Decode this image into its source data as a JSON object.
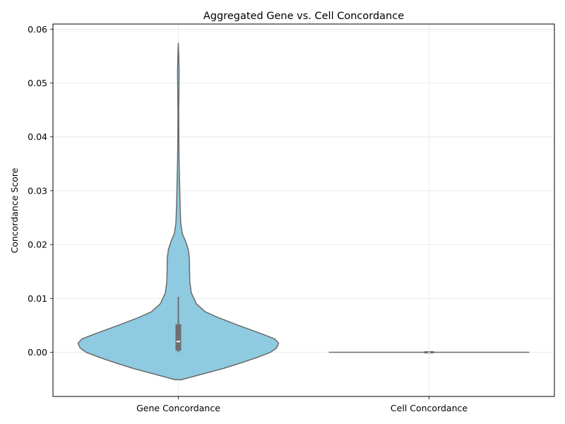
{
  "chart_data": {
    "type": "violin",
    "title": "Aggregated Gene vs. Cell Concordance",
    "xlabel": "",
    "ylabel": "Concordance Score",
    "ylim": [
      -0.0085,
      0.0613
    ],
    "yticks": [
      "0.00",
      "0.01",
      "0.02",
      "0.03",
      "0.04",
      "0.05",
      "0.06"
    ],
    "ytick_values": [
      0,
      0.01,
      0.02,
      0.03,
      0.04,
      0.05,
      0.06
    ],
    "grid": true,
    "categories": [
      "Gene Concordance",
      "Cell Concordance"
    ],
    "fill_color": "#8ecae0",
    "edge_color": "#6b6b6b",
    "box_color": "#6e6e6e",
    "violins": [
      {
        "category": "Gene Concordance",
        "min": 0.0,
        "q1": 0.0003,
        "median": 0.002,
        "q3": 0.0052,
        "whisker_high": 0.0103,
        "kde_low": -0.0051,
        "kde_high": 0.0574,
        "density_profile": [
          [
            -0.0051,
            0.03
          ],
          [
            -0.004,
            0.25
          ],
          [
            -0.003,
            0.45
          ],
          [
            -0.002,
            0.62
          ],
          [
            -0.001,
            0.78
          ],
          [
            0.0,
            0.92
          ],
          [
            0.0008,
            0.98
          ],
          [
            0.0017,
            1.0
          ],
          [
            0.0025,
            0.96
          ],
          [
            0.0035,
            0.82
          ],
          [
            0.005,
            0.6
          ],
          [
            0.0065,
            0.39
          ],
          [
            0.0075,
            0.27
          ],
          [
            0.009,
            0.18
          ],
          [
            0.011,
            0.13
          ],
          [
            0.013,
            0.115
          ],
          [
            0.015,
            0.112
          ],
          [
            0.0175,
            0.11
          ],
          [
            0.019,
            0.1
          ],
          [
            0.0205,
            0.075
          ],
          [
            0.022,
            0.04
          ],
          [
            0.024,
            0.024
          ],
          [
            0.027,
            0.018
          ],
          [
            0.031,
            0.013
          ],
          [
            0.035,
            0.008
          ],
          [
            0.04,
            0.005
          ],
          [
            0.045,
            0.004
          ],
          [
            0.05,
            0.007
          ],
          [
            0.052,
            0.008
          ],
          [
            0.054,
            0.006
          ],
          [
            0.056,
            0.003
          ],
          [
            0.0574,
            0.0
          ]
        ]
      },
      {
        "category": "Cell Concordance",
        "min": 0.0,
        "q1": 0.0,
        "median": 0.0,
        "q3": 0.0,
        "whisker_high": 0.0,
        "kde_low": 0.0,
        "kde_high": 0.0,
        "density_profile": [
          [
            0.0,
            1.0
          ]
        ]
      }
    ]
  }
}
